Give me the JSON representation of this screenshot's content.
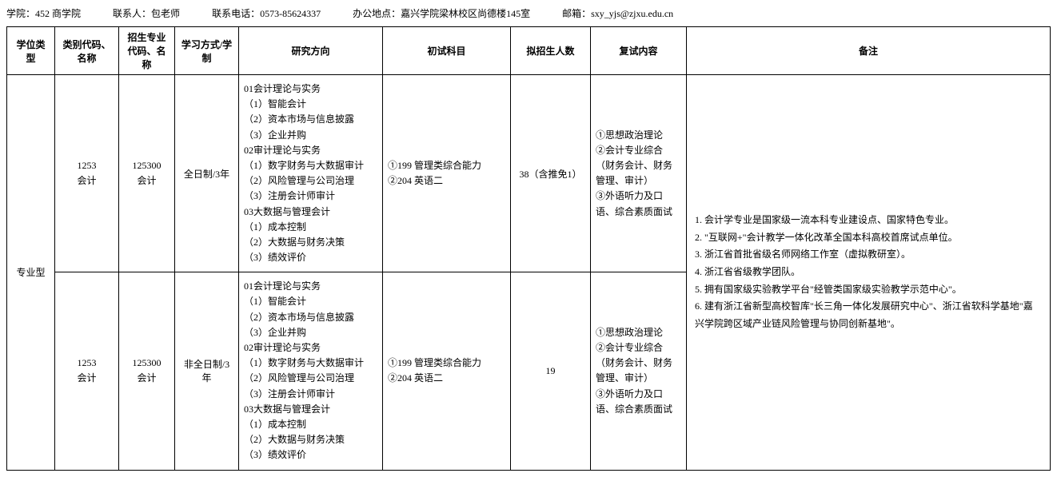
{
  "header": {
    "college_label": "学院：",
    "college_value": "452 商学院",
    "contact_person_label": "联系人：",
    "contact_person_value": "包老师",
    "phone_label": "联系电话：",
    "phone_value": "0573-85624337",
    "office_label": "办公地点：",
    "office_value": "嘉兴学院梁林校区尚德楼145室",
    "email_label": "邮箱：",
    "email_value": "sxy_yjs@zjxu.edu.cn"
  },
  "table": {
    "headers": {
      "degree_type": "学位类型",
      "category": "类别代码、名称",
      "major": "招生专业代码、名称",
      "study_mode": "学习方式/学制",
      "direction": "研究方向",
      "exam_initial": "初试科目",
      "enrollment": "拟招生人数",
      "exam_retest": "复试内容",
      "remarks": "备注"
    },
    "degree_type_value": "专业型",
    "rows": [
      {
        "category": "1253\n会计",
        "major": "125300\n会计",
        "study_mode": "全日制/3年",
        "direction": "01会计理论与实务\n（1）智能会计\n（2）资本市场与信息披露\n（3）企业并购\n02审计理论与实务\n（1）数字财务与大数据审计\n（2）风险管理与公司治理\n（3）注册会计师审计\n03大数据与管理会计\n（1）成本控制\n（2）大数据与财务决策\n（3）绩效评价",
        "exam_initial": "①199 管理类综合能力\n②204 英语二",
        "enrollment": "38（含推免1）",
        "exam_retest": "①思想政治理论\n②会计专业综合\n（财务会计、财务管理、审计）\n③外语听力及口语、综合素质面试"
      },
      {
        "category": "1253\n会计",
        "major": "125300\n会计",
        "study_mode": "非全日制/3年",
        "direction": "01会计理论与实务\n（1）智能会计\n（2）资本市场与信息披露\n（3）企业并购\n02审计理论与实务\n（1）数字财务与大数据审计\n（2）风险管理与公司治理\n（3）注册会计师审计\n03大数据与管理会计\n（1）成本控制\n（2）大数据与财务决策\n（3）绩效评价",
        "exam_initial": "①199 管理类综合能力\n②204 英语二",
        "enrollment": "19",
        "exam_retest": "①思想政治理论\n②会计专业综合\n（财务会计、财务管理、审计）\n③外语听力及口语、综合素质面试"
      }
    ],
    "remarks_value": "1. 会计学专业是国家级一流本科专业建设点、国家特色专业。\n2. \"互联网+\"会计教学一体化改革全国本科高校首席试点单位。\n3. 浙江省首批省级名师网络工作室（虚拟教研室）。\n4. 浙江省省级教学团队。\n5. 拥有国家级实验教学平台\"经管类国家级实验教学示范中心\"。\n6. 建有浙江省新型高校智库\"长三角一体化发展研究中心\"、浙江省软科学基地\"嘉兴学院跨区域产业链风险管理与协同创新基地\"。"
  }
}
